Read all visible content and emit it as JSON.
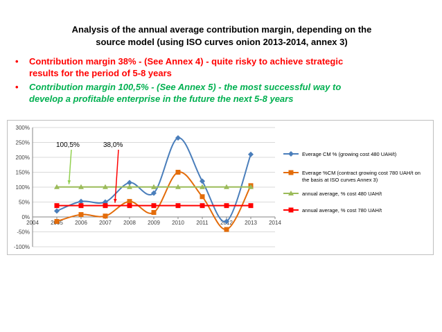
{
  "title": {
    "line1": "Analysis of the annual average contribution margin, depending on the",
    "line2": "source model (using ISO curves onion 2013-2014, annex 3)"
  },
  "bullets": [
    {
      "line1": "Contribution margin 38% - (See Annex 4) - quite risky to achieve strategic",
      "line2": "results for the period of 5-8 years",
      "color": "#ff0000"
    },
    {
      "line1": "Contribution margin 100,5% - (See Annex 5) - the most successful way to",
      "line2": "develop a profitable enterprise in the future the next 5-8 years",
      "color": "#00b050"
    }
  ],
  "bullet_symbol": "•",
  "chart_data": {
    "type": "line",
    "xlim": [
      2004,
      2014
    ],
    "ylim": [
      -100,
      300
    ],
    "x_ticks": [
      2004,
      2005,
      2006,
      2007,
      2008,
      2009,
      2010,
      2011,
      2012,
      2013,
      2014
    ],
    "y_ticks": [
      300,
      250,
      200,
      150,
      100,
      50,
      0,
      -50,
      -100
    ],
    "y_tick_labels": [
      "300%",
      "250%",
      "200%",
      "150%",
      "100%",
      "50%",
      "0%",
      "-50%",
      "-100%"
    ],
    "grid": true,
    "legend_position": "right",
    "series": [
      {
        "name": "Everage CM % (growing cost 480 UAH/t)",
        "color": "#4a7ebb",
        "marker": "diamond",
        "smooth": true,
        "x": [
          2005,
          2006,
          2007,
          2008,
          2009,
          2010,
          2011,
          2012,
          2013
        ],
        "y": [
          20,
          52,
          50,
          115,
          80,
          265,
          120,
          -15,
          210
        ]
      },
      {
        "name": "Everage %CM (contract growing cost 780 UAH/t on the basis at ISO curves Annex 3)",
        "color": "#e36c0a",
        "marker": "square",
        "smooth": true,
        "x": [
          2005,
          2006,
          2007,
          2008,
          2009,
          2010,
          2011,
          2012,
          2013
        ],
        "y": [
          -15,
          8,
          3,
          52,
          15,
          150,
          68,
          -42,
          105
        ]
      },
      {
        "name": "annual average, % cost 480 UAH/t",
        "color": "#9bbb59",
        "marker": "triangle",
        "smooth": false,
        "x": [
          2005,
          2006,
          2007,
          2008,
          2009,
          2010,
          2011,
          2012,
          2013
        ],
        "y": [
          100.5,
          100.5,
          100.5,
          100.5,
          100.5,
          100.5,
          100.5,
          100.5,
          100.5
        ]
      },
      {
        "name": "annual average, % cost 780 UAH/t",
        "color": "#ff0000",
        "marker": "square",
        "smooth": false,
        "x": [
          2005,
          2006,
          2007,
          2008,
          2009,
          2010,
          2011,
          2012,
          2013
        ],
        "y": [
          38,
          38,
          38,
          38,
          38,
          38,
          38,
          38,
          38
        ]
      }
    ],
    "annotations": [
      {
        "text": "100,5%",
        "color": "#92d050",
        "target_x": 2005.5,
        "target_y": 100.5
      },
      {
        "text": "38,0%",
        "color": "#ff0000",
        "target_x": 2007.4,
        "target_y": 38
      }
    ]
  }
}
